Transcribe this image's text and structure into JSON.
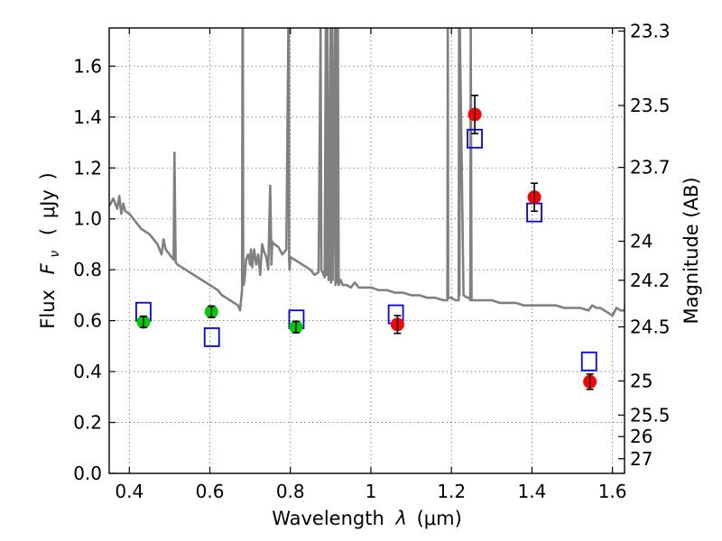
{
  "chart_data": {
    "type": "scatter",
    "title": "",
    "xlabel": "Wavelength",
    "xlabel_symbol": "λ",
    "xlabel_unit": "(μm)",
    "ylabel": "Flux",
    "ylabel_symbol": "F",
    "ylabel_symbol_sub": "ν",
    "ylabel_unit_open": "(",
    "ylabel_unit": "μJy",
    "ylabel_unit_close": ")",
    "y2label": "Magnitude (AB)",
    "xlim": [
      0.35,
      1.63
    ],
    "ylim": [
      0.0,
      1.75
    ],
    "grid": true,
    "x_ticks": [
      0.4,
      0.6,
      0.8,
      1.0,
      1.2,
      1.4,
      1.6
    ],
    "x_tick_labels": [
      "0.4",
      "0.6",
      "0.8",
      "1",
      "1.2",
      "1.4",
      "1.6"
    ],
    "y_ticks": [
      0.0,
      0.2,
      0.4,
      0.6,
      0.8,
      1.0,
      1.2,
      1.4,
      1.6
    ],
    "y_tick_labels": [
      "0.0",
      "0.2",
      "0.4",
      "0.6",
      "0.8",
      "1.0",
      "1.2",
      "1.4",
      "1.6"
    ],
    "y2_ticks": [
      {
        "mag": 23.3,
        "label": "23.3"
      },
      {
        "mag": 23.5,
        "label": "23.5"
      },
      {
        "mag": 23.7,
        "label": "23.7"
      },
      {
        "mag": 24.0,
        "label": "24"
      },
      {
        "mag": 24.2,
        "label": "24.2"
      },
      {
        "mag": 24.5,
        "label": "24.5"
      },
      {
        "mag": 25.0,
        "label": "25"
      },
      {
        "mag": 25.5,
        "label": "25.5"
      },
      {
        "mag": 26.0,
        "label": "26"
      },
      {
        "mag": 27.0,
        "label": "27"
      }
    ],
    "series": [
      {
        "name": "model spectrum",
        "kind": "line",
        "color": "#808080",
        "x": [
          0.35,
          0.36,
          0.37,
          0.375,
          0.38,
          0.385,
          0.39,
          0.4,
          0.41,
          0.42,
          0.43,
          0.44,
          0.45,
          0.46,
          0.47,
          0.48,
          0.485,
          0.49,
          0.5,
          0.505,
          0.51,
          0.512,
          0.515,
          0.52,
          0.53,
          0.54,
          0.55,
          0.56,
          0.57,
          0.58,
          0.59,
          0.6,
          0.61,
          0.62,
          0.63,
          0.64,
          0.65,
          0.66,
          0.67,
          0.675,
          0.68,
          0.681,
          0.682,
          0.683,
          0.684,
          0.686,
          0.69,
          0.695,
          0.7,
          0.702,
          0.705,
          0.71,
          0.715,
          0.72,
          0.725,
          0.73,
          0.735,
          0.74,
          0.745,
          0.75,
          0.753,
          0.755,
          0.76,
          0.77,
          0.78,
          0.79,
          0.795,
          0.796,
          0.797,
          0.798,
          0.8,
          0.81,
          0.82,
          0.83,
          0.84,
          0.85,
          0.86,
          0.87,
          0.875,
          0.877,
          0.88,
          0.885,
          0.888,
          0.89,
          0.892,
          0.895,
          0.9,
          0.901,
          0.903,
          0.905,
          0.91,
          0.912,
          0.914,
          0.916,
          0.918,
          0.92,
          0.925,
          0.93,
          0.94,
          0.95,
          0.96,
          0.97,
          0.98,
          1.0,
          1.02,
          1.04,
          1.06,
          1.08,
          1.1,
          1.12,
          1.14,
          1.16,
          1.18,
          1.19,
          1.191,
          1.192,
          1.2,
          1.21,
          1.218,
          1.219,
          1.22,
          1.221,
          1.23,
          1.24,
          1.245,
          1.246,
          1.247,
          1.248,
          1.25,
          1.26,
          1.28,
          1.3,
          1.32,
          1.34,
          1.36,
          1.38,
          1.4,
          1.42,
          1.44,
          1.46,
          1.48,
          1.5,
          1.52,
          1.54,
          1.55,
          1.56,
          1.57,
          1.58,
          1.59,
          1.6,
          1.61,
          1.62,
          1.63
        ],
        "y": [
          1.05,
          1.08,
          1.04,
          1.09,
          1.02,
          1.06,
          1.03,
          1.02,
          1.0,
          0.98,
          0.96,
          0.95,
          0.94,
          0.92,
          0.9,
          0.86,
          0.92,
          0.88,
          0.86,
          0.85,
          0.84,
          1.26,
          0.83,
          0.82,
          0.81,
          0.8,
          0.79,
          0.78,
          0.77,
          0.76,
          0.75,
          0.74,
          0.73,
          0.72,
          0.7,
          0.69,
          0.68,
          0.67,
          0.66,
          0.64,
          0.72,
          1.75,
          1.75,
          0.8,
          0.74,
          0.76,
          0.84,
          0.86,
          0.82,
          0.88,
          0.81,
          0.88,
          0.82,
          0.86,
          0.78,
          0.9,
          0.87,
          0.85,
          0.8,
          1.13,
          0.82,
          0.91,
          0.9,
          0.89,
          0.86,
          0.88,
          1.75,
          1.75,
          0.84,
          0.8,
          0.85,
          0.84,
          0.83,
          0.82,
          0.81,
          0.8,
          0.78,
          0.79,
          1.75,
          0.8,
          0.79,
          0.77,
          1.75,
          0.78,
          1.75,
          0.76,
          1.75,
          0.75,
          1.75,
          0.76,
          1.75,
          0.74,
          1.75,
          0.75,
          1.75,
          0.74,
          0.76,
          0.74,
          0.74,
          0.73,
          0.75,
          0.73,
          0.73,
          0.73,
          0.72,
          0.72,
          0.71,
          0.71,
          0.7,
          0.7,
          0.69,
          0.69,
          0.68,
          0.68,
          1.75,
          0.69,
          0.69,
          0.68,
          0.68,
          1.75,
          0.7,
          1.75,
          0.7,
          0.69,
          0.69,
          0.68,
          0.69,
          1.75,
          0.68,
          0.68,
          0.68,
          0.68,
          0.67,
          0.67,
          0.67,
          0.66,
          0.66,
          0.66,
          0.66,
          0.66,
          0.65,
          0.65,
          0.65,
          0.64,
          0.66,
          0.65,
          0.65,
          0.64,
          0.63,
          0.62,
          0.65,
          0.64,
          0.64
        ]
      },
      {
        "name": "green points",
        "kind": "errorbar",
        "color": "#00cc00",
        "x": [
          0.435,
          0.604,
          0.814
        ],
        "y": [
          0.595,
          0.635,
          0.575
        ],
        "yerr": [
          0.022,
          0.022,
          0.022
        ]
      },
      {
        "name": "red points",
        "kind": "errorbar",
        "color": "#ff0000",
        "x": [
          1.066,
          1.258,
          1.406,
          1.544
        ],
        "y": [
          0.585,
          1.41,
          1.085,
          0.36
        ],
        "yerr": [
          0.035,
          0.075,
          0.055,
          0.03
        ]
      },
      {
        "name": "model bands",
        "kind": "open-square",
        "color": "#0000ff",
        "x": [
          0.435,
          0.605,
          0.815,
          1.062,
          1.258,
          1.406,
          1.542
        ],
        "y": [
          0.635,
          0.535,
          0.605,
          0.625,
          1.315,
          1.025,
          0.44
        ]
      }
    ]
  }
}
